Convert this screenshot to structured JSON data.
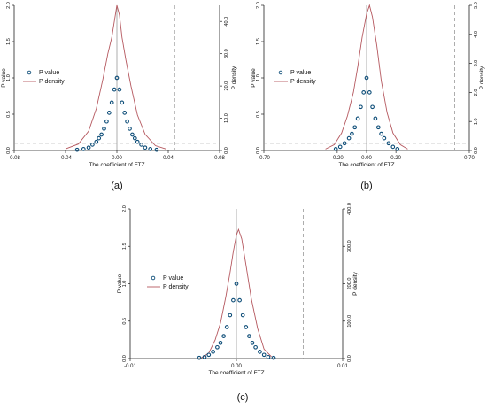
{
  "figure": {
    "background": "#ffffff",
    "colors": {
      "p_value": "#0d4d78",
      "p_density": "#b5585f",
      "axis": "#222222",
      "reference_line": "#999999",
      "text": "#111111"
    }
  },
  "chart_data": [
    {
      "type": "scatter",
      "caption": "(a)",
      "xlabel": "The coefficient of FTZ",
      "ylabel_left": "P value",
      "ylabel_right": "P density",
      "xlim": [
        -0.08,
        0.08
      ],
      "ylim_left": [
        0,
        2.0
      ],
      "ylim_right": [
        0,
        45
      ],
      "xticks": [
        -0.08,
        -0.04,
        0.0,
        0.04,
        0.08
      ],
      "xtick_labels": [
        "-0.08",
        "-0.04",
        "0.00",
        "0.04",
        "0.08"
      ],
      "yticks_left": [
        0,
        0.5,
        1.0,
        1.5,
        2.0
      ],
      "ytick_labels_left": [
        "0.0",
        "0.5",
        "1.0",
        "1.5",
        "2.0"
      ],
      "yticks_right": [
        0,
        10,
        20,
        30,
        40
      ],
      "ytick_labels_right": [
        "0.0",
        "10.0",
        "20.0",
        "30.0",
        "40.0"
      ],
      "legend": {
        "position": "left",
        "entries": [
          "P value",
          "P density"
        ]
      },
      "reference_lines": {
        "estimate_x": 0.045,
        "significance_y": 0.1
      },
      "series": [
        {
          "name": "P value",
          "kind": "markers",
          "axis": "left",
          "x": [
            -0.031,
            -0.026,
            -0.022,
            -0.019,
            -0.016,
            -0.014,
            -0.012,
            -0.01,
            -0.008,
            -0.006,
            -0.004,
            -0.002,
            0.0,
            0.002,
            0.004,
            0.006,
            0.008,
            0.01,
            0.012,
            0.014,
            0.016,
            0.019,
            0.022,
            0.026,
            0.031
          ],
          "y": [
            0.01,
            0.02,
            0.04,
            0.08,
            0.12,
            0.17,
            0.22,
            0.3,
            0.4,
            0.52,
            0.66,
            0.84,
            1.0,
            0.84,
            0.66,
            0.52,
            0.4,
            0.3,
            0.22,
            0.17,
            0.12,
            0.08,
            0.04,
            0.02,
            0.01
          ]
        },
        {
          "name": "P density",
          "kind": "line",
          "axis": "right",
          "x": [
            -0.04,
            -0.03,
            -0.022,
            -0.016,
            -0.011,
            -0.007,
            -0.004,
            -0.002,
            0.0,
            0.002,
            0.004,
            0.007,
            0.011,
            0.016,
            0.022,
            0.03,
            0.038
          ],
          "y": [
            0.5,
            2,
            6,
            13,
            22,
            30,
            35,
            40,
            45,
            42,
            35,
            28,
            20,
            11,
            5,
            1.5,
            0.5
          ]
        }
      ]
    },
    {
      "type": "scatter",
      "caption": "(b)",
      "xlabel": "The coefficient of FTZ",
      "ylabel_left": "P value",
      "ylabel_right": "P density",
      "xlim": [
        -0.7,
        0.7
      ],
      "ylim_left": [
        0,
        2.0
      ],
      "ylim_right": [
        0,
        5.0
      ],
      "xticks": [
        -0.7,
        -0.2,
        0.0,
        0.2,
        0.7
      ],
      "xtick_labels": [
        "-0.70",
        "-0.20",
        "0.00",
        "0.20",
        "0.70"
      ],
      "yticks_left": [
        0,
        0.5,
        1.0,
        1.5,
        2.0
      ],
      "ytick_labels_left": [
        "0.0",
        "0.5",
        "1.0",
        "1.5",
        "2.0"
      ],
      "yticks_right": [
        0,
        1,
        2,
        3,
        4,
        5
      ],
      "ytick_labels_right": [
        "0.0",
        "1.0",
        "2.0",
        "3.0",
        "4.0",
        "5.0"
      ],
      "legend": {
        "position": "left",
        "entries": [
          "P value",
          "P density"
        ]
      },
      "reference_lines": {
        "estimate_x": 0.6,
        "significance_y": 0.1
      },
      "series": [
        {
          "name": "P value",
          "kind": "markers",
          "axis": "left",
          "x": [
            -0.21,
            -0.18,
            -0.15,
            -0.12,
            -0.1,
            -0.08,
            -0.06,
            -0.04,
            -0.02,
            0.0,
            0.02,
            0.04,
            0.06,
            0.08,
            0.1,
            0.12,
            0.15,
            0.18,
            0.21
          ],
          "y": [
            0.02,
            0.05,
            0.1,
            0.17,
            0.23,
            0.32,
            0.44,
            0.6,
            0.8,
            1.0,
            0.8,
            0.6,
            0.44,
            0.32,
            0.23,
            0.17,
            0.1,
            0.05,
            0.02
          ]
        },
        {
          "name": "P density",
          "kind": "line",
          "axis": "right",
          "x": [
            -0.28,
            -0.22,
            -0.17,
            -0.13,
            -0.09,
            -0.06,
            -0.03,
            0.0,
            0.02,
            0.04,
            0.07,
            0.1,
            0.14,
            0.18,
            0.23,
            0.28
          ],
          "y": [
            0.05,
            0.2,
            0.6,
            1.2,
            2.0,
            2.9,
            3.9,
            4.7,
            5.0,
            4.6,
            3.6,
            2.4,
            1.3,
            0.6,
            0.2,
            0.05
          ]
        }
      ]
    },
    {
      "type": "scatter",
      "caption": "(c)",
      "xlabel": "The coefficient of FTZ",
      "ylabel_left": "P value",
      "ylabel_right": "P density",
      "xlim": [
        -0.01,
        0.01
      ],
      "ylim_left": [
        0,
        2.0
      ],
      "ylim_right": [
        0,
        400
      ],
      "xticks": [
        -0.01,
        0.0,
        0.01
      ],
      "xtick_labels": [
        "-0.01",
        "0.00",
        "0.01"
      ],
      "yticks_left": [
        0,
        0.5,
        1.0,
        1.5,
        2.0
      ],
      "ytick_labels_left": [
        "0.0",
        "0.5",
        "1.0",
        "1.5",
        "2.0"
      ],
      "yticks_right": [
        0,
        100,
        200,
        300,
        400
      ],
      "ytick_labels_right": [
        "0.0",
        "100.0",
        "200.0",
        "300.0",
        "400.0"
      ],
      "legend": {
        "position": "left",
        "entries": [
          "P value",
          "P density"
        ]
      },
      "reference_lines": {
        "estimate_x": 0.0063,
        "significance_y": 0.1
      },
      "series": [
        {
          "name": "P value",
          "kind": "markers",
          "axis": "left",
          "x": [
            -0.0035,
            -0.003,
            -0.0026,
            -0.0022,
            -0.0018,
            -0.0015,
            -0.0012,
            -0.0009,
            -0.0006,
            -0.0003,
            0.0,
            0.0003,
            0.0006,
            0.0009,
            0.0012,
            0.0015,
            0.0018,
            0.0022,
            0.0026,
            0.003,
            0.0035
          ],
          "y": [
            0.01,
            0.02,
            0.05,
            0.09,
            0.15,
            0.21,
            0.3,
            0.42,
            0.58,
            0.78,
            1.0,
            0.78,
            0.58,
            0.42,
            0.3,
            0.21,
            0.15,
            0.09,
            0.05,
            0.02,
            0.01
          ]
        },
        {
          "name": "P density",
          "kind": "line",
          "axis": "right",
          "x": [
            -0.0033,
            -0.0026,
            -0.002,
            -0.0015,
            -0.001,
            -0.0006,
            -0.0003,
            0.0,
            0.0002,
            0.0005,
            0.0009,
            0.0014,
            0.002,
            0.0026,
            0.0033
          ],
          "y": [
            2,
            15,
            50,
            95,
            165,
            230,
            285,
            330,
            345,
            320,
            250,
            160,
            80,
            25,
            5
          ]
        }
      ]
    }
  ]
}
